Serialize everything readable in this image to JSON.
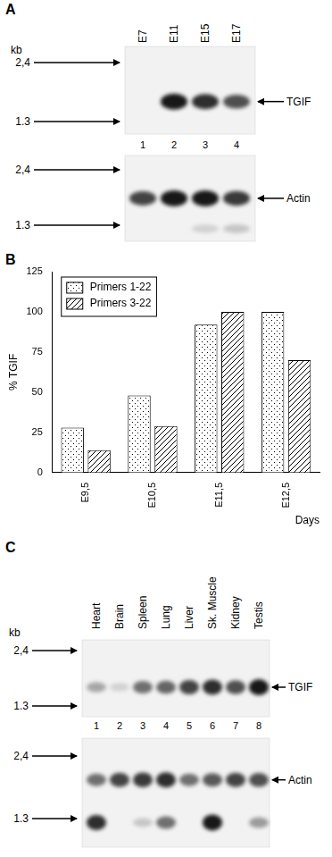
{
  "panel_a": {
    "letter": "A",
    "unit": "kb",
    "lanes": [
      "E7",
      "E11",
      "E15",
      "E17"
    ],
    "lane_numbers": [
      1,
      2,
      3,
      4
    ],
    "blots": [
      {
        "label": "TGIF",
        "markers": [
          {
            "value": 2.4,
            "label": "2,4"
          },
          {
            "value": 1.3,
            "label": "1.3"
          }
        ],
        "bands": [
          {
            "size_kb": 1.6,
            "intensity": [
              0,
              1,
              0.9,
              0.75
            ]
          }
        ]
      },
      {
        "label": "Actin",
        "markers": [
          {
            "value": 2.4,
            "label": "2,4"
          },
          {
            "value": 1.3,
            "label": "1.3"
          }
        ],
        "bands": [
          {
            "size_kb": 1.75,
            "intensity": [
              0.8,
              1,
              1,
              0.85
            ]
          },
          {
            "size_kb": 1.25,
            "intensity": [
              0,
              0,
              0.15,
              0.2
            ]
          }
        ]
      }
    ]
  },
  "chart_data": {
    "letter": "B",
    "type": "bar",
    "y_label": "% TGIF",
    "x_label": "Days",
    "categories": [
      "E9,5",
      "E10,5",
      "E11,5",
      "E12,5"
    ],
    "series": [
      {
        "name": "Primers 1-22",
        "color": "#ffffff",
        "marker": "dots",
        "values": [
          28,
          48,
          92,
          100
        ]
      },
      {
        "name": "Primers 3-22",
        "color": "#ffffff",
        "marker": "hatch",
        "values": [
          14,
          29,
          100,
          70
        ]
      }
    ],
    "ylim": [
      0,
      125
    ],
    "yticks": [
      0,
      25,
      50,
      75,
      100,
      125
    ],
    "legend": "upper left",
    "grid": false
  },
  "panel_c": {
    "letter": "C",
    "unit": "kb",
    "lanes": [
      "Heart",
      "Brain",
      "Spleen",
      "Lung",
      "Liver",
      "Sk. Muscle",
      "Kidney",
      "Testis"
    ],
    "lane_numbers": [
      1,
      2,
      3,
      4,
      5,
      6,
      7,
      8
    ],
    "blots": [
      {
        "label": "TGIF",
        "markers": [
          {
            "value": 2.4,
            "label": "2,4"
          },
          {
            "value": 1.3,
            "label": "1.3"
          }
        ],
        "bands": [
          {
            "size_kb": 1.6,
            "intensity": [
              0.35,
              0.15,
              0.6,
              0.65,
              0.8,
              0.9,
              0.75,
              1
            ]
          }
        ]
      },
      {
        "label": "Actin",
        "markers": [
          {
            "value": 2.4,
            "label": "2,4"
          },
          {
            "value": 1.3,
            "label": "1.3"
          }
        ],
        "bands": [
          {
            "size_kb": 1.9,
            "intensity": [
              0.6,
              0.8,
              0.85,
              0.9,
              0.6,
              0.7,
              0.8,
              0.75
            ]
          },
          {
            "size_kb": 1.25,
            "intensity": [
              0.9,
              0,
              0.2,
              0.6,
              0,
              1,
              0,
              0.4
            ]
          }
        ]
      }
    ]
  }
}
